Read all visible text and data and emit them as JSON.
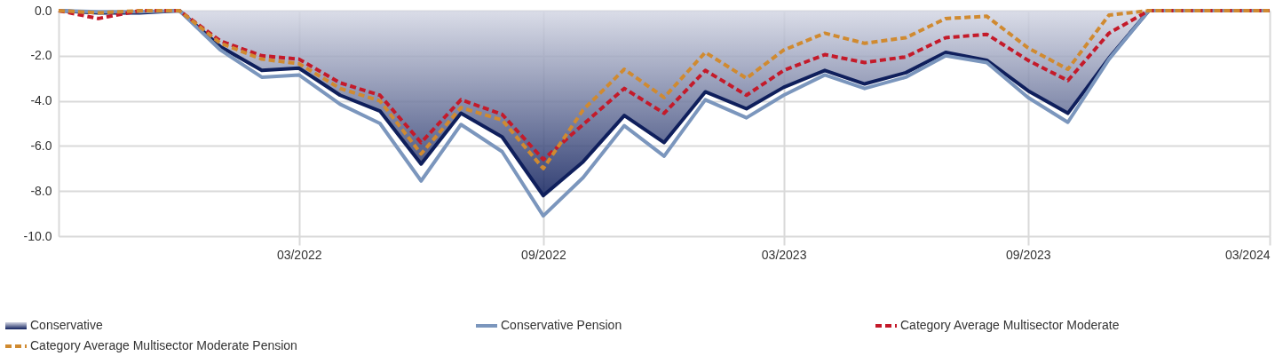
{
  "chart_data": {
    "type": "line",
    "x": [
      "2021-09",
      "2021-10",
      "2021-11",
      "2021-12",
      "2022-01",
      "2022-02",
      "2022-03",
      "2022-04",
      "2022-05",
      "2022-06",
      "2022-07",
      "2022-08",
      "2022-09",
      "2022-10",
      "2022-11",
      "2022-12",
      "2023-01",
      "2023-02",
      "2023-03",
      "2023-04",
      "2023-05",
      "2023-06",
      "2023-07",
      "2023-08",
      "2023-09",
      "2023-10",
      "2023-11",
      "2023-12",
      "2024-01",
      "2024-02",
      "2024-03"
    ],
    "series": [
      {
        "name": "Conservative",
        "type": "area",
        "color": "#0f1f5c",
        "line_style": "solid",
        "values": [
          0,
          -0.1,
          -0.1,
          0,
          -1.6,
          -2.65,
          -2.55,
          -3.75,
          -4.45,
          -6.8,
          -4.55,
          -5.6,
          -8.2,
          -6.7,
          -4.65,
          -5.85,
          -3.6,
          -4.35,
          -3.4,
          -2.65,
          -3.25,
          -2.75,
          -1.85,
          -2.2,
          -3.55,
          -4.55,
          -2.1,
          0,
          0,
          0,
          0
        ]
      },
      {
        "name": "Conservative Pension",
        "type": "line",
        "color": "#7b96bd",
        "line_style": "solid",
        "values": [
          0,
          -0.05,
          -0.05,
          0,
          -1.75,
          -2.95,
          -2.85,
          -4.15,
          -5.0,
          -7.55,
          -5.05,
          -6.25,
          -9.1,
          -7.4,
          -5.1,
          -6.45,
          -3.95,
          -4.75,
          -3.75,
          -2.85,
          -3.45,
          -2.95,
          -2.0,
          -2.3,
          -3.85,
          -4.95,
          -2.15,
          0,
          0,
          0,
          0
        ]
      },
      {
        "name": "Category Average Multisector Moderate",
        "type": "line",
        "color": "#c41a2a",
        "line_style": "dashed",
        "values": [
          0,
          -0.35,
          0,
          0,
          -1.35,
          -2.0,
          -2.15,
          -3.2,
          -3.75,
          -5.85,
          -3.95,
          -4.6,
          -6.6,
          -5.05,
          -3.45,
          -4.55,
          -2.65,
          -3.75,
          -2.65,
          -1.95,
          -2.3,
          -2.05,
          -1.2,
          -1.05,
          -2.2,
          -3.1,
          -1.0,
          0,
          0,
          0,
          0
        ]
      },
      {
        "name": "Category Average Multisector Moderate Pension",
        "type": "line",
        "color": "#d08a30",
        "line_style": "dashed",
        "values": [
          0,
          -0.1,
          0,
          0,
          -1.45,
          -2.15,
          -2.35,
          -3.45,
          -4.0,
          -6.35,
          -4.3,
          -4.85,
          -7.0,
          -4.4,
          -2.6,
          -3.85,
          -1.85,
          -3.0,
          -1.75,
          -1.0,
          -1.45,
          -1.2,
          -0.35,
          -0.25,
          -1.65,
          -2.6,
          -0.2,
          0,
          0,
          0,
          0
        ]
      }
    ],
    "xlim": [
      "2021-09",
      "2024-03"
    ],
    "xticks": [
      {
        "value": "2022-03",
        "label": "03/2022"
      },
      {
        "value": "2022-09",
        "label": "09/2022"
      },
      {
        "value": "2023-03",
        "label": "03/2023"
      },
      {
        "value": "2023-09",
        "label": "09/2023"
      },
      {
        "value": "2024-03",
        "label": "03/2024"
      }
    ],
    "ylim": [
      -10,
      0
    ],
    "yticks": [
      {
        "value": -10,
        "label": "-10.0"
      },
      {
        "value": -8,
        "label": "-8.0"
      },
      {
        "value": -6,
        "label": "-6.0"
      },
      {
        "value": -4,
        "label": "-4.0"
      },
      {
        "value": -2,
        "label": "-2.0"
      },
      {
        "value": 0,
        "label": "0.0"
      }
    ],
    "grid": true,
    "legend": "bottom",
    "marker": "none"
  }
}
